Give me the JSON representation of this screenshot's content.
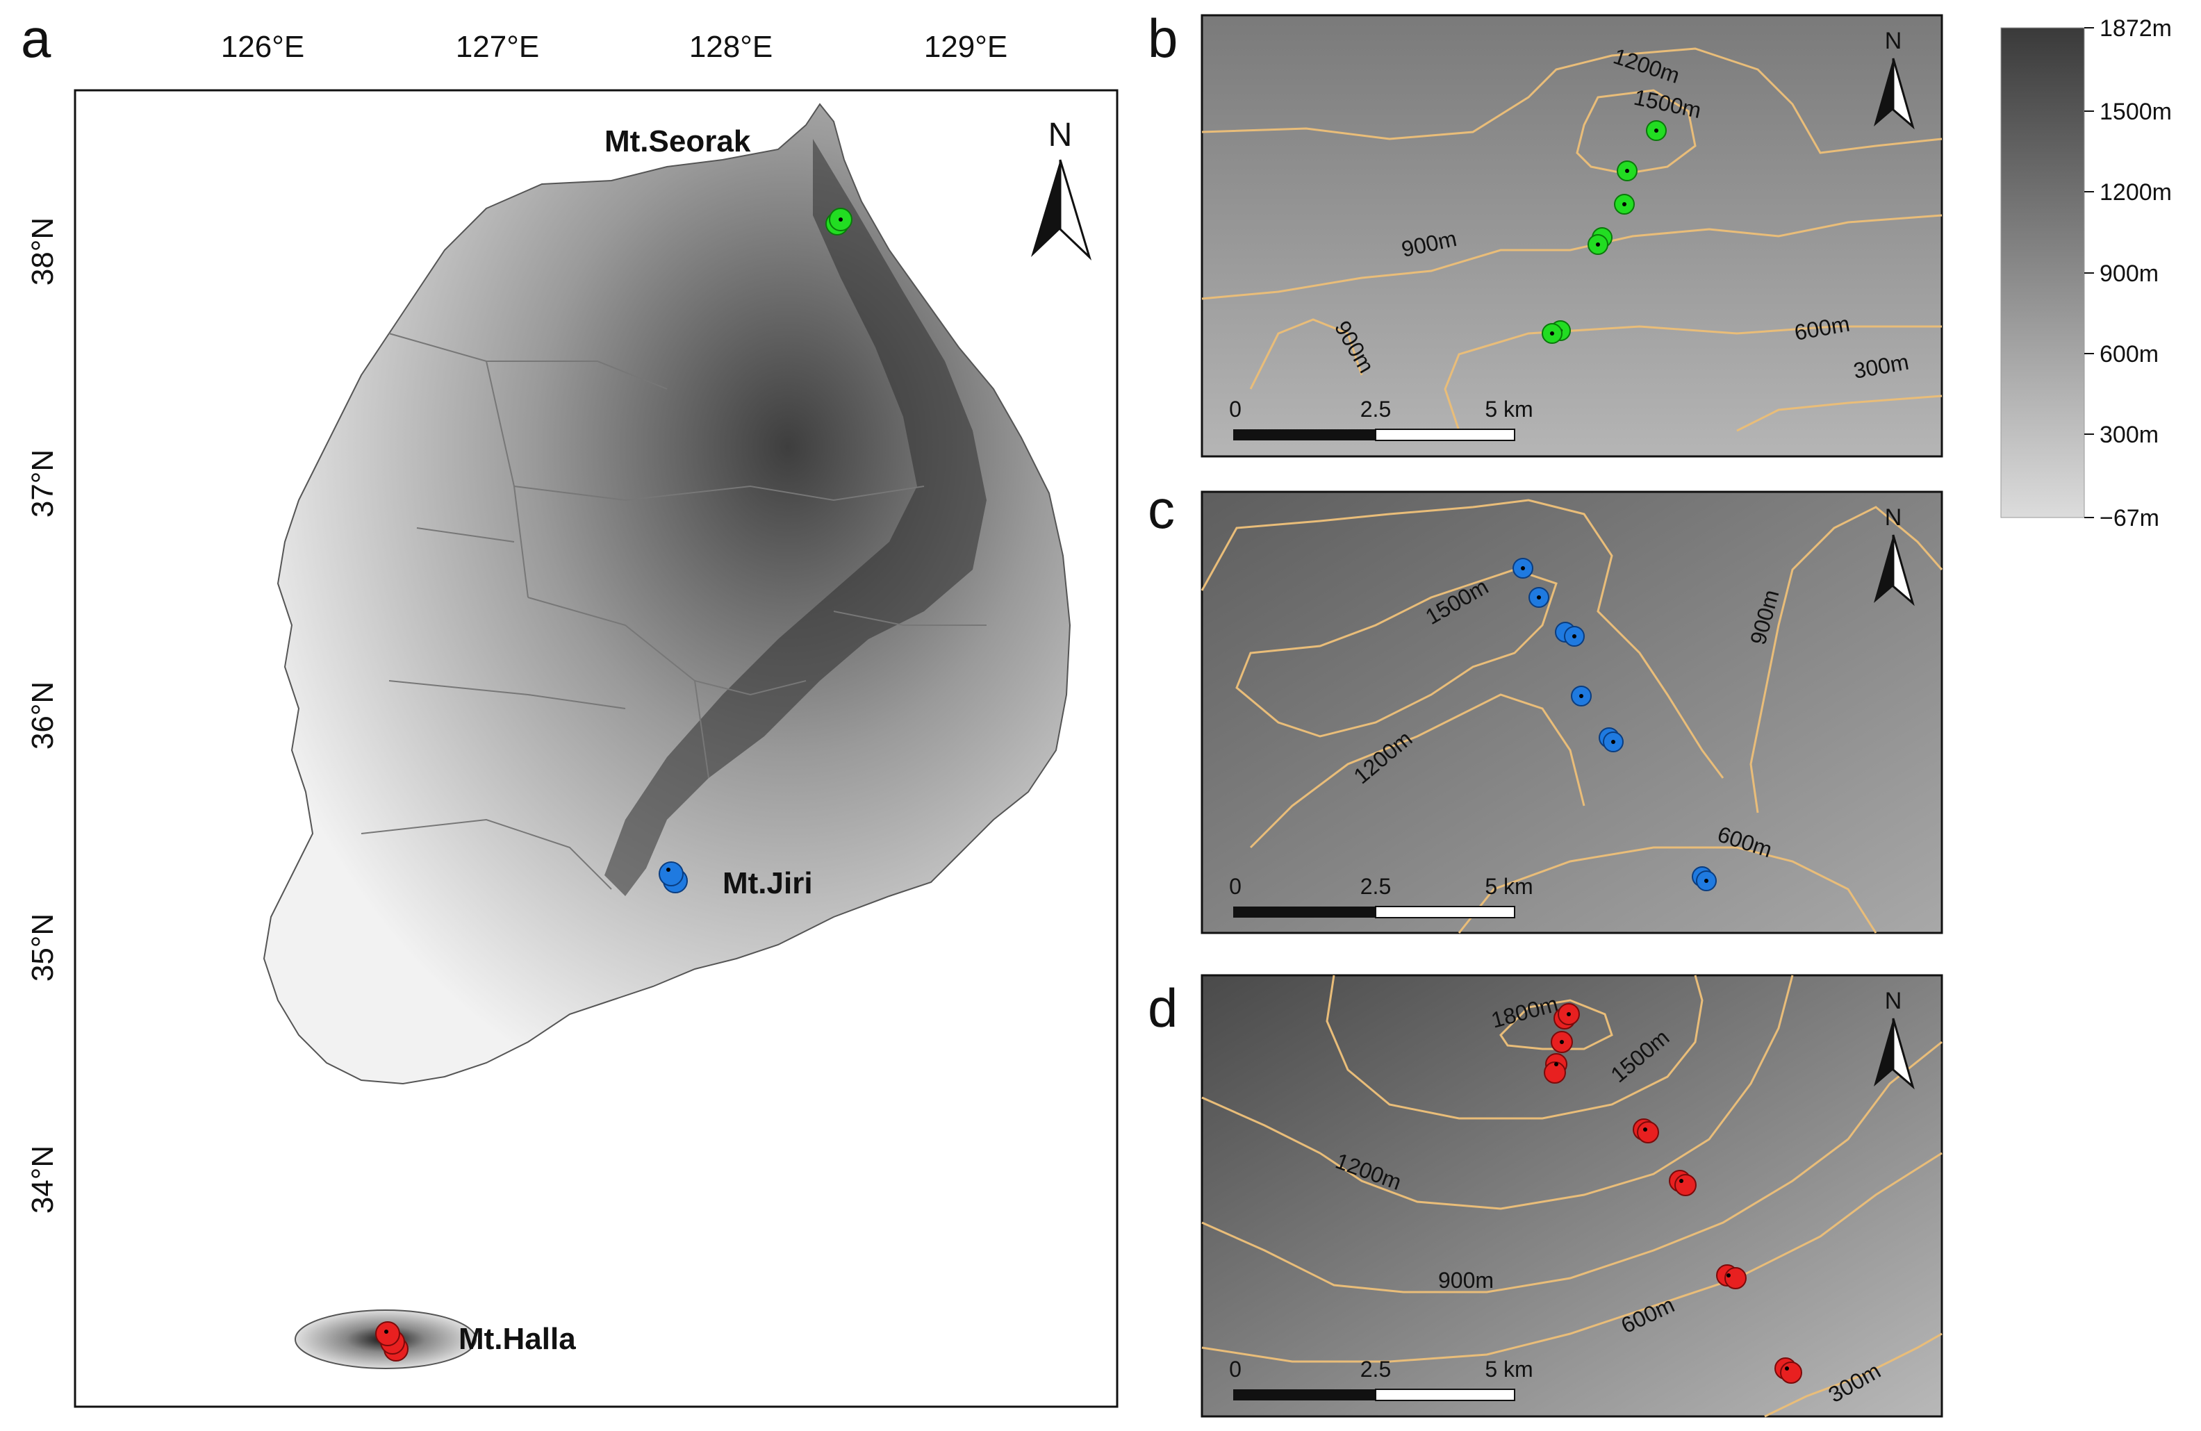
{
  "panels": {
    "a": {
      "letter": "a",
      "lon_ticks": [
        "126°E",
        "127°E",
        "128°E",
        "129°E"
      ],
      "lat_ticks": [
        "38°N",
        "37°N",
        "36°N",
        "35°N",
        "34°N"
      ],
      "places": {
        "seorak": "Mt.Seorak",
        "jiri": "Mt.Jiri",
        "halla": "Mt.Halla"
      },
      "north": "N"
    },
    "b": {
      "letter": "b",
      "north": "N",
      "contours": [
        "1200m",
        "1500m",
        "900m",
        "900m",
        "600m",
        "300m"
      ],
      "scale": [
        "0",
        "2.5",
        "5 km"
      ]
    },
    "c": {
      "letter": "c",
      "north": "N",
      "contours": [
        "1500m",
        "900m",
        "1200m",
        "600m"
      ],
      "scale": [
        "0",
        "2.5",
        "5 km"
      ]
    },
    "d": {
      "letter": "d",
      "north": "N",
      "contours": [
        "1800m",
        "1500m",
        "1200m",
        "900m",
        "600m",
        "300m"
      ],
      "scale": [
        "0",
        "2.5",
        "5 km"
      ]
    }
  },
  "legend": {
    "title": "",
    "labels": [
      "1872m",
      "1500m",
      "1200m",
      "900m",
      "600m",
      "300m",
      "−67m"
    ]
  },
  "colors": {
    "seorak": "#22dd22",
    "jiri": "#1f7ae0",
    "halla": "#e82020",
    "contour": "#e9bd79"
  }
}
